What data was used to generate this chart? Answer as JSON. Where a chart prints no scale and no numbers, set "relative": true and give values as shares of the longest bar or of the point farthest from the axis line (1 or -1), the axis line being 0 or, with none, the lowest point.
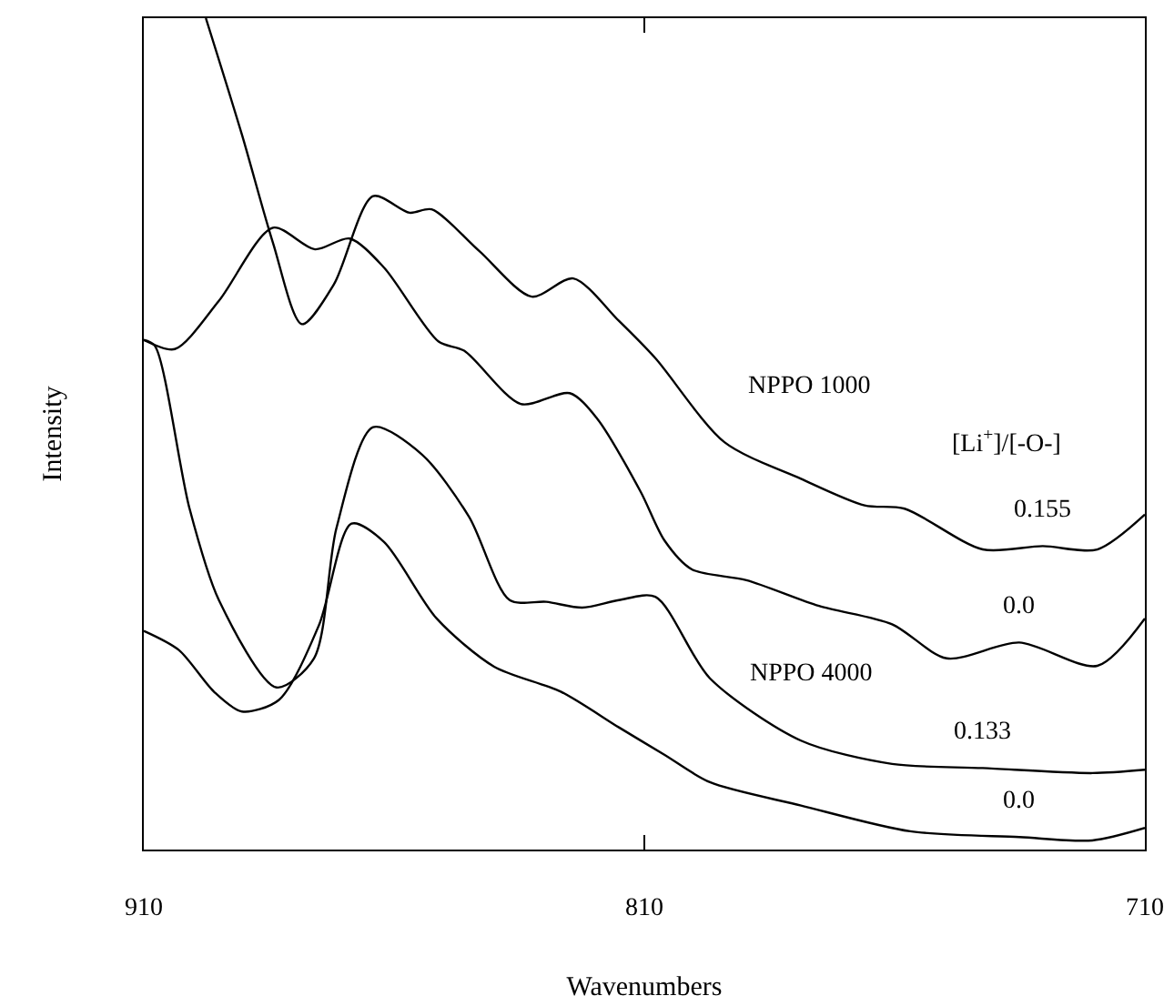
{
  "chart_data": {
    "type": "line",
    "relative": true,
    "xlabel": "Wavenumbers",
    "ylabel": "Intensity",
    "xlim": [
      910,
      710
    ],
    "xticks": [
      910,
      810,
      710
    ],
    "grid": false,
    "legend": false,
    "marker": "none",
    "line_style": "solid",
    "annotations": [
      "NPPO 1000",
      "[Li$^{+}$]/[-O-]",
      "NPPO 4000"
    ],
    "series": [
      {
        "name": "0.155",
        "color": "#000000",
        "x": [
          897.6,
          890.4,
          884.2,
          878.4,
          872,
          864.2,
          856.9,
          852.5,
          843,
          832.5,
          824.2,
          815.1,
          807.8,
          794,
          778.7,
          766,
          758,
          742.4,
          730.4,
          719.5,
          710
        ],
        "values": [
          1,
          0.86,
          0.73,
          0.632,
          0.68,
          0.786,
          0.766,
          0.77,
          0.72,
          0.665,
          0.687,
          0.636,
          0.591,
          0.49,
          0.446,
          0.414,
          0.41,
          0.361,
          0.365,
          0.361,
          0.403
        ]
      },
      {
        "name": "0.0",
        "color": "#000000",
        "x": [
          910,
          903.8,
          895,
          884.2,
          875.8,
          868.9,
          862,
          851.1,
          846,
          834.7,
          824.9,
          819.5,
          810.7,
          806,
          800.5,
          789.6,
          775.1,
          760.5,
          749.6,
          735.1,
          719.5,
          710
        ],
        "values": [
          0.613,
          0.602,
          0.66,
          0.748,
          0.722,
          0.735,
          0.7,
          0.611,
          0.6,
          0.536,
          0.549,
          0.519,
          0.43,
          0.372,
          0.337,
          0.324,
          0.293,
          0.271,
          0.23,
          0.249,
          0.221,
          0.278
        ]
      },
      {
        "name": "0.133",
        "color": "#000000",
        "x": [
          910,
          907.8,
          900.9,
          895,
          883.5,
          876,
          871.5,
          864.2,
          854.4,
          845,
          836.9,
          829.6,
          822.4,
          815.1,
          807.8,
          796.9,
          778.7,
          760.5,
          742.4,
          720.5,
          710
        ],
        "values": [
          0.613,
          0.606,
          0.411,
          0.3,
          0.195,
          0.23,
          0.387,
          0.508,
          0.475,
          0.4,
          0.3,
          0.298,
          0.291,
          0.3,
          0.304,
          0.206,
          0.131,
          0.103,
          0.098,
          0.092,
          0.096
        ]
      },
      {
        "name": "0.0",
        "color": "#000000",
        "x": [
          910,
          903,
          896,
          890.4,
          883,
          875,
          868.5,
          862,
          851.5,
          840,
          826.7,
          815.1,
          806,
          796.9,
          778.7,
          756.9,
          735.1,
          720.5,
          710
        ],
        "values": [
          0.263,
          0.24,
          0.19,
          0.166,
          0.18,
          0.27,
          0.392,
          0.37,
          0.278,
          0.22,
          0.19,
          0.147,
          0.114,
          0.081,
          0.053,
          0.022,
          0.015,
          0.011,
          0.026
        ]
      }
    ]
  }
}
